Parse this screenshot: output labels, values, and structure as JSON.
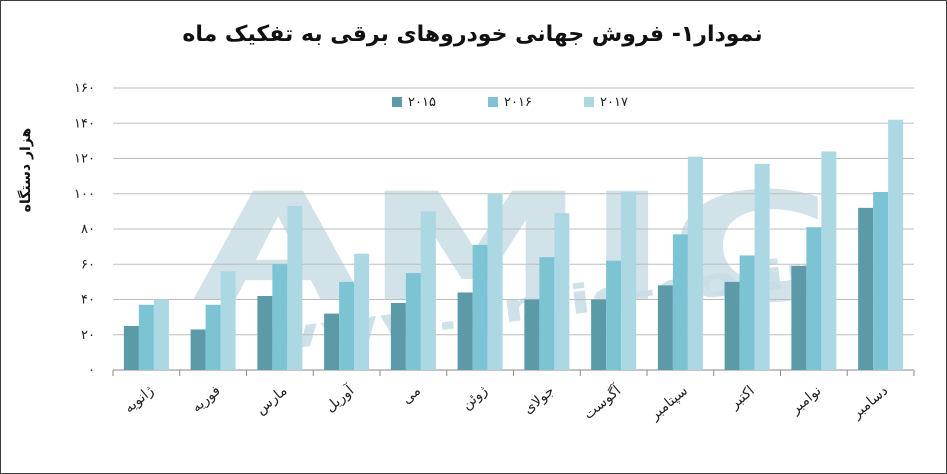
{
  "chart_data": {
    "type": "bar",
    "title": "نمودار۱- فروش جهانی خودروهای برقی به تفکیک ماه",
    "ylabel": "هزار دستگاه",
    "xlabel": "",
    "categories": [
      "ژانویه",
      "فوریه",
      "مارس",
      "آوریل",
      "می",
      "ژوئن",
      "جولای",
      "آگوست",
      "سپتامبر",
      "اکتبر",
      "نوامبر",
      "دسامبر"
    ],
    "series": [
      {
        "name": "۲۰۱۵",
        "color": "#5b9aa6",
        "values": [
          25,
          23,
          42,
          32,
          38,
          44,
          40,
          40,
          48,
          50,
          59,
          92
        ]
      },
      {
        "name": "۲۰۱۶",
        "color": "#7cc3d4",
        "values": [
          37,
          37,
          60,
          50,
          55,
          71,
          64,
          62,
          77,
          65,
          81,
          101
        ]
      },
      {
        "name": "۲۰۱۷",
        "color": "#acd8e4",
        "values": [
          40,
          56,
          93,
          66,
          90,
          100,
          89,
          101,
          121,
          117,
          124,
          142
        ]
      }
    ],
    "ylim": [
      0,
      160
    ],
    "yticks": [
      "۰",
      "۲۰",
      "۴۰",
      "۶۰",
      "۸۰",
      "۱۰۰",
      "۱۲۰",
      "۱۴۰",
      "۱۶۰"
    ],
    "grid": true,
    "legend_position": "top-center",
    "watermark": {
      "main": "AMIC",
      "sub": "www.amic-co.ir"
    }
  }
}
